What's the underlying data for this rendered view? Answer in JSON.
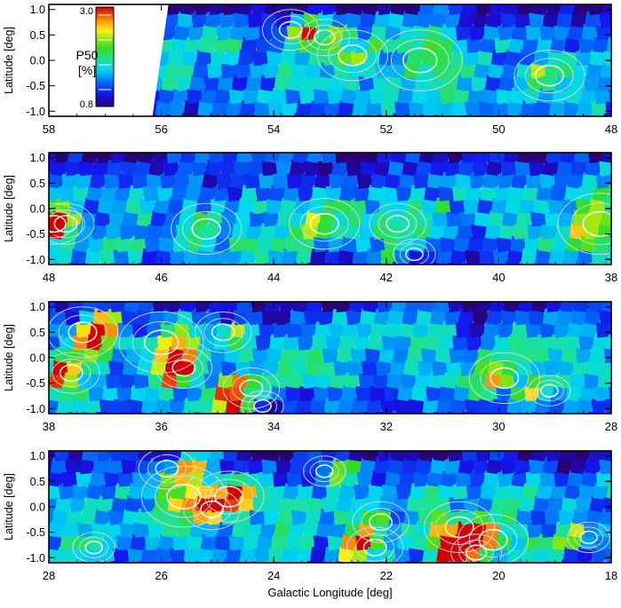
{
  "chart_data": [
    {
      "type": "heatmap",
      "panel": 1,
      "xlabel": "",
      "ylabel": "Latitude [deg]",
      "xlim": [
        58,
        48
      ],
      "ylim": [
        -1.1,
        1.1
      ],
      "x_ticks": [
        "58",
        "56",
        "54",
        "52",
        "50",
        "48"
      ],
      "y_ticks": [
        "1.0",
        "0.5",
        "0.0",
        "-0.5",
        "-1.0"
      ],
      "colorbar": {
        "label_line1": "P50",
        "label_line2": "[%]",
        "min_label": "0.8",
        "max_label": "3.0",
        "min": 0.8,
        "max": 3.0
      },
      "coverage_start": 56.0,
      "grid_step_deg": 0.25,
      "hotspots": [
        {
          "l": 53.7,
          "b": 0.6,
          "amp": 1.8,
          "sigma": 0.2
        },
        {
          "l": 53.1,
          "b": 0.45,
          "amp": 1.3,
          "sigma": 0.18
        },
        {
          "l": 52.6,
          "b": 0.1,
          "amp": 0.7,
          "sigma": 0.25
        },
        {
          "l": 51.4,
          "b": 0.0,
          "amp": 0.6,
          "sigma": 0.3
        },
        {
          "l": 49.1,
          "b": -0.3,
          "amp": 0.7,
          "sigma": 0.25
        }
      ]
    },
    {
      "type": "heatmap",
      "panel": 2,
      "xlabel": "",
      "ylabel": "Latitude [deg]",
      "xlim": [
        48,
        38
      ],
      "ylim": [
        -1.1,
        1.1
      ],
      "x_ticks": [
        "48",
        "46",
        "44",
        "42",
        "40",
        "38"
      ],
      "y_ticks": [
        "1.0",
        "0.5",
        "0.0",
        "-0.5",
        "-1.0"
      ],
      "grid_step_deg": 0.25,
      "hotspots": [
        {
          "l": 47.7,
          "b": -0.3,
          "amp": 1.9,
          "sigma": 0.2
        },
        {
          "l": 47.9,
          "b": -0.3,
          "amp": 1.2,
          "sigma": 0.2
        },
        {
          "l": 45.2,
          "b": -0.4,
          "amp": 0.7,
          "sigma": 0.25
        },
        {
          "l": 43.1,
          "b": -0.3,
          "amp": 0.8,
          "sigma": 0.25
        },
        {
          "l": 41.8,
          "b": -0.3,
          "amp": 0.9,
          "sigma": 0.2
        },
        {
          "l": 41.5,
          "b": -0.9,
          "amp": 1.0,
          "sigma": 0.15
        },
        {
          "l": 38.2,
          "b": -0.3,
          "amp": 0.8,
          "sigma": 0.3
        }
      ]
    },
    {
      "type": "heatmap",
      "panel": 3,
      "xlabel": "",
      "ylabel": "Latitude [deg]",
      "xlim": [
        38,
        28
      ],
      "ylim": [
        -1.1,
        1.1
      ],
      "x_ticks": [
        "38",
        "36",
        "34",
        "32",
        "30",
        "28"
      ],
      "y_ticks": [
        "1.0",
        "0.5",
        "0.0",
        "-0.5",
        "-1.0"
      ],
      "grid_step_deg": 0.25,
      "hotspots": [
        {
          "l": 37.4,
          "b": 0.5,
          "amp": 2.1,
          "sigma": 0.25
        },
        {
          "l": 37.6,
          "b": -0.3,
          "amp": 1.6,
          "sigma": 0.2
        },
        {
          "l": 36.0,
          "b": 0.3,
          "amp": 1.0,
          "sigma": 0.3
        },
        {
          "l": 35.6,
          "b": -0.2,
          "amp": 2.2,
          "sigma": 0.2
        },
        {
          "l": 34.9,
          "b": 0.5,
          "amp": 1.2,
          "sigma": 0.2
        },
        {
          "l": 34.4,
          "b": -0.6,
          "amp": 1.6,
          "sigma": 0.2
        },
        {
          "l": 34.2,
          "b": -0.95,
          "amp": 1.8,
          "sigma": 0.15
        },
        {
          "l": 29.9,
          "b": -0.4,
          "amp": 0.9,
          "sigma": 0.25
        },
        {
          "l": 29.1,
          "b": -0.65,
          "amp": 1.6,
          "sigma": 0.15
        }
      ]
    },
    {
      "type": "heatmap",
      "panel": 4,
      "xlabel": "Galactic Longitude [deg]",
      "ylabel": "Latitude [deg]",
      "xlim": [
        28,
        18
      ],
      "ylim": [
        -1.1,
        1.1
      ],
      "x_ticks": [
        "28",
        "26",
        "24",
        "22",
        "20",
        "18"
      ],
      "y_ticks": [
        "1.0",
        "0.5",
        "0.0",
        "-0.5",
        "-1.0"
      ],
      "grid_step_deg": 0.25,
      "hotspots": [
        {
          "l": 25.9,
          "b": 0.75,
          "amp": 1.8,
          "sigma": 0.2
        },
        {
          "l": 25.6,
          "b": 0.2,
          "amp": 1.0,
          "sigma": 0.3
        },
        {
          "l": 24.8,
          "b": 0.2,
          "amp": 1.6,
          "sigma": 0.25
        },
        {
          "l": 25.1,
          "b": -0.05,
          "amp": 1.4,
          "sigma": 0.2
        },
        {
          "l": 23.1,
          "b": 0.7,
          "amp": 1.3,
          "sigma": 0.15
        },
        {
          "l": 22.2,
          "b": -0.8,
          "amp": 1.9,
          "sigma": 0.2
        },
        {
          "l": 22.1,
          "b": -0.3,
          "amp": 1.2,
          "sigma": 0.2
        },
        {
          "l": 20.7,
          "b": -0.4,
          "amp": 1.1,
          "sigma": 0.25
        },
        {
          "l": 20.1,
          "b": -0.65,
          "amp": 2.4,
          "sigma": 0.25
        },
        {
          "l": 20.4,
          "b": -0.9,
          "amp": 1.8,
          "sigma": 0.18
        },
        {
          "l": 18.4,
          "b": -0.6,
          "amp": 1.3,
          "sigma": 0.15
        },
        {
          "l": 27.2,
          "b": -0.8,
          "amp": 0.6,
          "sigma": 0.15
        }
      ]
    }
  ]
}
